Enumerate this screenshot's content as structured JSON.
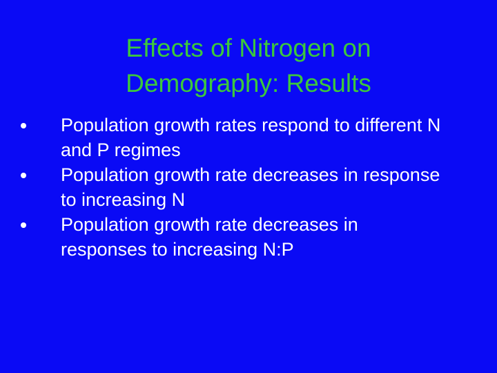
{
  "title": "Effects of Nitrogen on Demography: Results",
  "bullets": [
    "Population growth rates respond to different N and P regimes",
    "Population growth rate decreases in response to increasing N",
    "Population growth rate decreases in responses to increasing N:P"
  ]
}
